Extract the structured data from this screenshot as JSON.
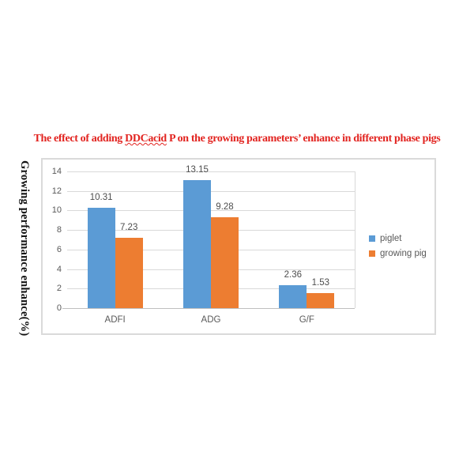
{
  "page": {
    "background": "#ffffff"
  },
  "title": {
    "prefix": "The effect of adding ",
    "misspelled_word": "DDCacid",
    "suffix": " P on the growing parameters’ enhance in different phase pigs",
    "color": "#e2231f"
  },
  "chart_data": {
    "type": "bar",
    "title": "",
    "categories": [
      "ADFI",
      "ADG",
      "G/F"
    ],
    "series": [
      {
        "name": "piglet",
        "color": "#5b9bd5",
        "values": [
          10.31,
          13.15,
          2.36
        ]
      },
      {
        "name": "growing pig",
        "color": "#ed7d31",
        "values": [
          7.23,
          9.28,
          1.53
        ]
      }
    ],
    "data_labels": [
      "10.31",
      "13.15",
      "2.36",
      "7.23",
      "9.28",
      "1.53"
    ],
    "xlabel": "",
    "ylabel": "Growing performance enhance(%)",
    "ylim": [
      0,
      14
    ],
    "ytick_step": 2,
    "ytick_labels": [
      "0",
      "2",
      "4",
      "6",
      "8",
      "10",
      "12",
      "14"
    ],
    "grid": true,
    "legend_position": "right",
    "colors": {
      "gridline": "#d9d9d9",
      "axis_line": "#bfbfbf",
      "tick_text": "#595959",
      "chart_border": "#dadada"
    }
  }
}
